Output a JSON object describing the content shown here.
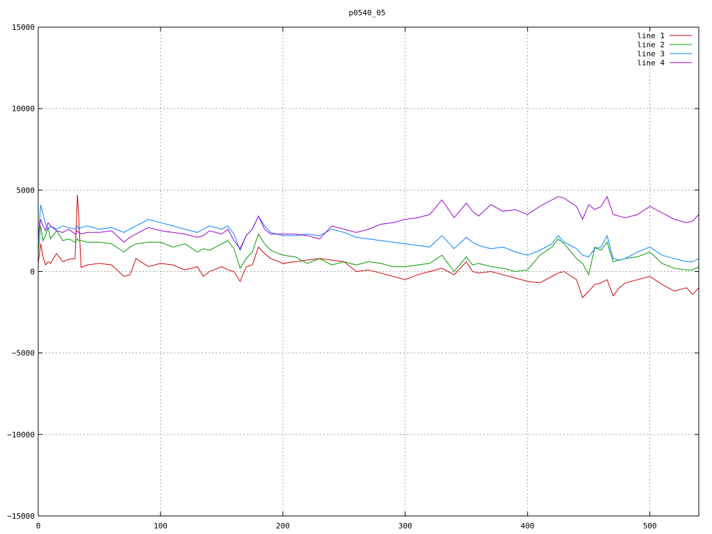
{
  "chart_data": {
    "type": "line",
    "title": "p0540_05",
    "xlabel": "",
    "ylabel": "",
    "xlim": [
      0,
      540
    ],
    "ylim": [
      -15000,
      15000
    ],
    "xticks": [
      "0",
      "100",
      "200",
      "300",
      "400",
      "500"
    ],
    "yticks": [
      "15000",
      "10000",
      "5000",
      "0",
      "−5000",
      "−10000",
      "−15000"
    ],
    "grid": true,
    "legend_position": "top-right",
    "x": [
      0,
      2,
      4,
      6,
      8,
      10,
      15,
      20,
      25,
      30,
      31,
      32,
      33,
      35,
      40,
      50,
      60,
      70,
      75,
      80,
      90,
      100,
      110,
      120,
      130,
      135,
      140,
      150,
      155,
      160,
      165,
      170,
      175,
      180,
      185,
      190,
      200,
      210,
      220,
      230,
      240,
      250,
      260,
      270,
      280,
      290,
      300,
      310,
      320,
      330,
      340,
      350,
      355,
      360,
      370,
      380,
      390,
      400,
      410,
      420,
      425,
      430,
      440,
      445,
      450,
      455,
      460,
      465,
      470,
      475,
      480,
      490,
      500,
      510,
      520,
      530,
      535,
      540
    ],
    "series": [
      {
        "name": "line 1",
        "color": "#cc0000",
        "values": [
          500,
          1700,
          900,
          400,
          600,
          500,
          1100,
          600,
          750,
          800,
          2500,
          4700,
          3500,
          250,
          400,
          500,
          400,
          -300,
          -200,
          800,
          300,
          500,
          400,
          100,
          300,
          -300,
          0,
          300,
          100,
          0,
          -600,
          300,
          400,
          1500,
          1100,
          800,
          500,
          600,
          700,
          800,
          700,
          600,
          0,
          100,
          -100,
          -300,
          -500,
          -200,
          0,
          200,
          -200,
          600,
          0,
          -100,
          0,
          -200,
          -400,
          -600,
          -700,
          -300,
          -100,
          0,
          -500,
          -1600,
          -1200,
          -800,
          -700,
          -500,
          -1500,
          -1000,
          -700,
          -500,
          -300,
          -800,
          -1200,
          -1000,
          -1400,
          -1000
        ]
      },
      {
        "name": "line 2",
        "color": "#009900",
        "values": [
          1200,
          2800,
          1900,
          2200,
          2700,
          2000,
          2500,
          1900,
          2000,
          1800,
          1900,
          2000,
          1900,
          1900,
          1800,
          1800,
          1700,
          1200,
          1500,
          1700,
          1800,
          1800,
          1500,
          1700,
          1200,
          1400,
          1300,
          1700,
          1900,
          1400,
          200,
          800,
          1200,
          2300,
          1700,
          1300,
          1000,
          900,
          500,
          800,
          400,
          600,
          400,
          600,
          500,
          300,
          300,
          400,
          500,
          1000,
          0,
          900,
          400,
          500,
          300,
          200,
          0,
          100,
          1000,
          1500,
          2000,
          1700,
          800,
          500,
          -200,
          1500,
          1300,
          1800,
          600,
          700,
          800,
          900,
          1200,
          500,
          200,
          100,
          100,
          300
        ]
      },
      {
        "name": "line 3",
        "color": "#0080ff",
        "values": [
          1800,
          4100,
          3500,
          2900,
          2600,
          2800,
          2600,
          2800,
          2700,
          2600,
          2700,
          2800,
          2600,
          2700,
          2800,
          2600,
          2700,
          2400,
          2600,
          2800,
          3200,
          3000,
          2800,
          2600,
          2400,
          2600,
          2800,
          2600,
          2800,
          2300,
          1300,
          2200,
          2600,
          3400,
          2800,
          2400,
          2200,
          2200,
          2300,
          2200,
          2600,
          2400,
          2100,
          2000,
          1900,
          1800,
          1700,
          1600,
          1500,
          2200,
          1400,
          2100,
          1800,
          1600,
          1400,
          1500,
          1200,
          1000,
          1300,
          1700,
          2200,
          1800,
          1400,
          1000,
          900,
          1400,
          1500,
          2200,
          800,
          700,
          800,
          1200,
          1500,
          1000,
          800,
          600,
          600,
          800
        ]
      },
      {
        "name": "line 4",
        "color": "#9900cc",
        "values": [
          2200,
          3200,
          2800,
          2500,
          3000,
          2800,
          2500,
          2400,
          2600,
          2300,
          2400,
          2500,
          2400,
          2300,
          2400,
          2400,
          2500,
          1800,
          2100,
          2300,
          2700,
          2500,
          2400,
          2300,
          2100,
          2200,
          2500,
          2300,
          2600,
          1900,
          1400,
          2200,
          2600,
          3400,
          2600,
          2300,
          2300,
          2300,
          2200,
          2000,
          2800,
          2600,
          2400,
          2600,
          2900,
          3000,
          3200,
          3300,
          3500,
          4400,
          3300,
          4200,
          3700,
          3400,
          4100,
          3700,
          3800,
          3500,
          4000,
          4400,
          4600,
          4500,
          4000,
          3200,
          4100,
          3800,
          4000,
          4600,
          3500,
          3400,
          3300,
          3500,
          4000,
          3600,
          3200,
          3000,
          3100,
          3500
        ]
      }
    ]
  }
}
